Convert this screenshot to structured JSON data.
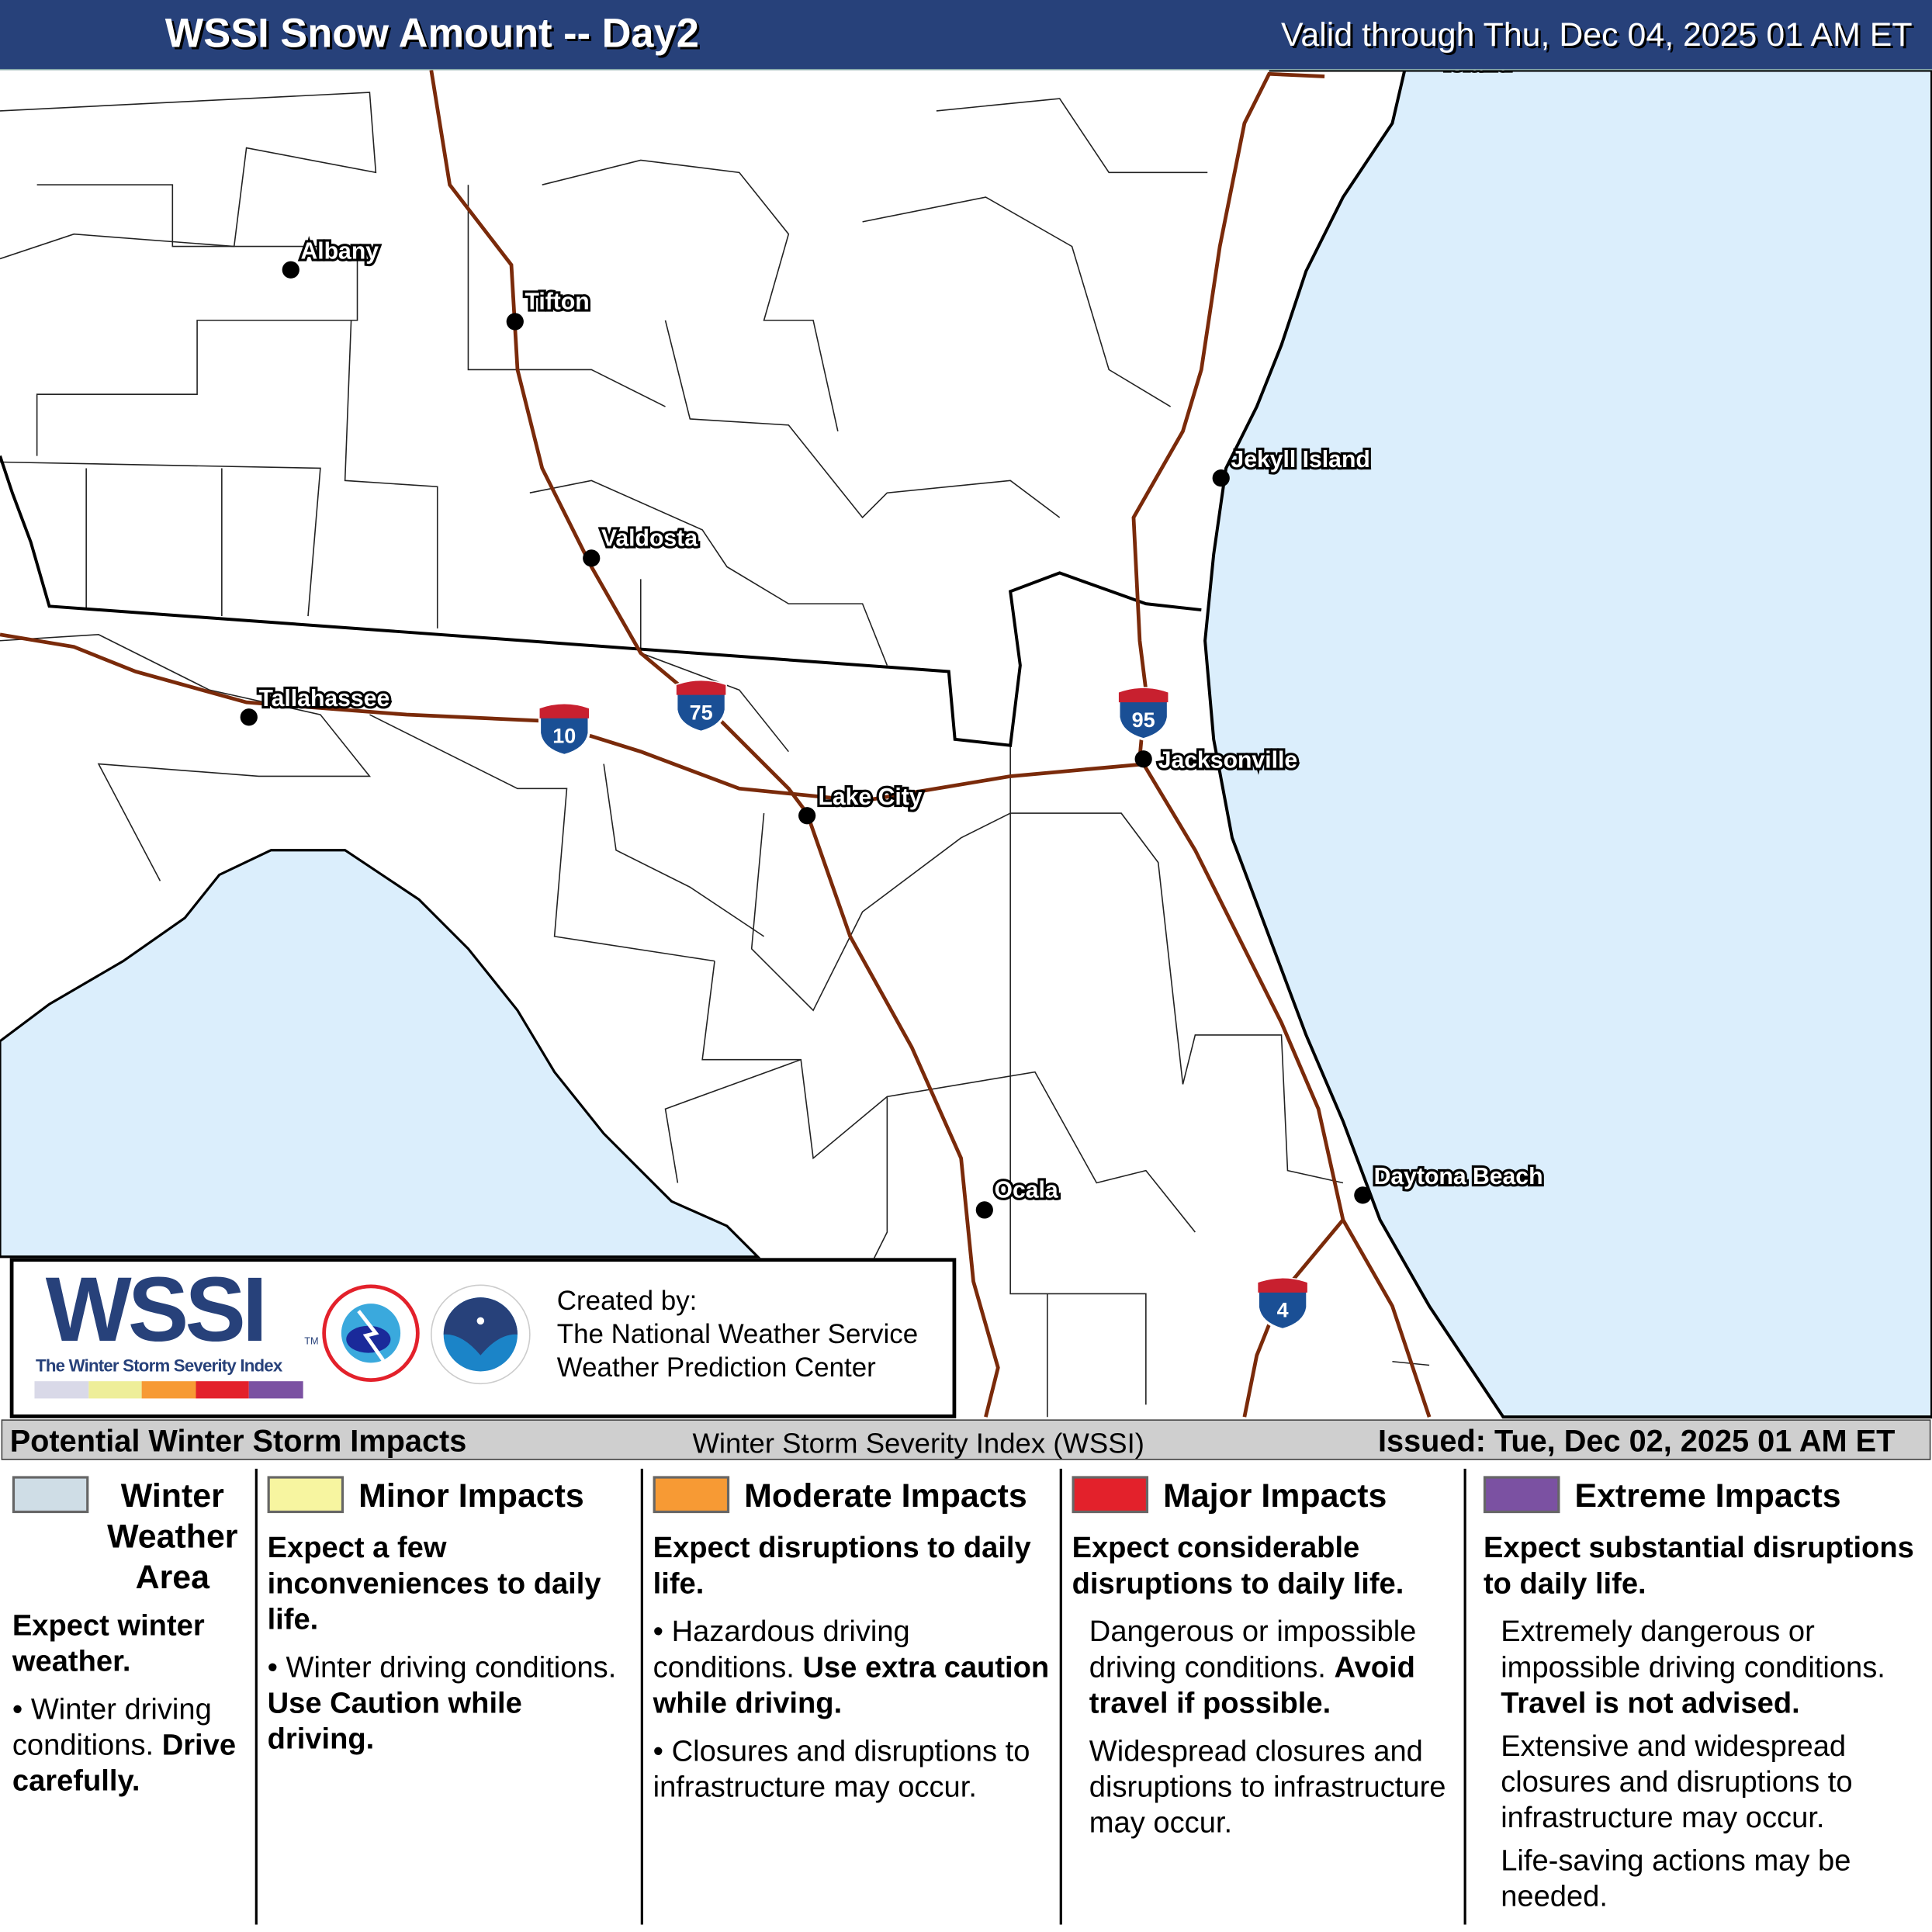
{
  "header": {
    "title": "WSSI Snow Amount -- Day2",
    "valid": "Valid through Thu, Dec 04, 2025 01 AM ET"
  },
  "map": {
    "colors": {
      "water": "#dbeefc",
      "land": "#ffffff",
      "interstate": "#7a2a0a",
      "border": "#000000"
    },
    "cities": [
      {
        "name": "Albany"
      },
      {
        "name": "Tifton"
      },
      {
        "name": "Valdosta"
      },
      {
        "name": "Tallahassee"
      },
      {
        "name": "Lake City"
      },
      {
        "name": "Jacksonville"
      },
      {
        "name": "Jekyll Island"
      },
      {
        "name": "Ocala"
      },
      {
        "name": "Daytona Beach"
      },
      {
        "name": "Island"
      }
    ],
    "interstates": [
      "10",
      "75",
      "95",
      "4"
    ]
  },
  "logo": {
    "wssi": "WSSI",
    "tm": "TM",
    "subtitle": "The Winter Storm Severity Index",
    "scale_colors": [
      "#d9d9e8",
      "#eeee99",
      "#f79a34",
      "#e3212b",
      "#7b51a2"
    ],
    "credit": [
      "Created by:",
      "The National Weather Service",
      "Weather Prediction Center"
    ]
  },
  "legend_bar": {
    "left": "Potential Winter Storm Impacts",
    "center": "Winter Storm Severity Index (WSSI)",
    "right": "Issued: Tue, Dec 02, 2025 01 AM ET"
  },
  "categories": [
    {
      "name": "Winter Weather Area",
      "color": "#cfdde6",
      "lead": "Expect winter weather.",
      "bullet": "Winter driving conditions.",
      "bullet_bold": "Drive carefully."
    },
    {
      "name": "Minor Impacts",
      "color": "#f7f5a0",
      "lead": "Expect a few inconveniences to daily life.",
      "bullet": "Winter driving conditions.",
      "bullet_bold": "Use Caution while driving."
    },
    {
      "name": "Moderate Impacts",
      "color": "#f79a34",
      "lead": "Expect disruptions to daily life.",
      "bullet": "Hazardous driving conditions.",
      "bullet_bold": "Use extra caution while driving.",
      "bullet2": "Closures and disruptions to infrastructure may occur."
    },
    {
      "name": "Major Impacts",
      "color": "#e3212b",
      "lead": "Expect considerable disruptions to daily life.",
      "p1": "Dangerous or impossible driving conditions.",
      "p1_bold": "Avoid travel if possible.",
      "p2": "Widespread closures and disruptions to infrastructure may occur."
    },
    {
      "name": "Extreme Impacts",
      "color": "#7b51a2",
      "lead": "Expect substantial disruptions to daily life.",
      "p1": "Extremely dangerous or impossible driving conditions.",
      "p1_bold": "Travel is not advised.",
      "p2": "Extensive and widespread closures and disruptions to infrastructure may occur.",
      "p3": "Life-saving actions may be needed."
    }
  ]
}
